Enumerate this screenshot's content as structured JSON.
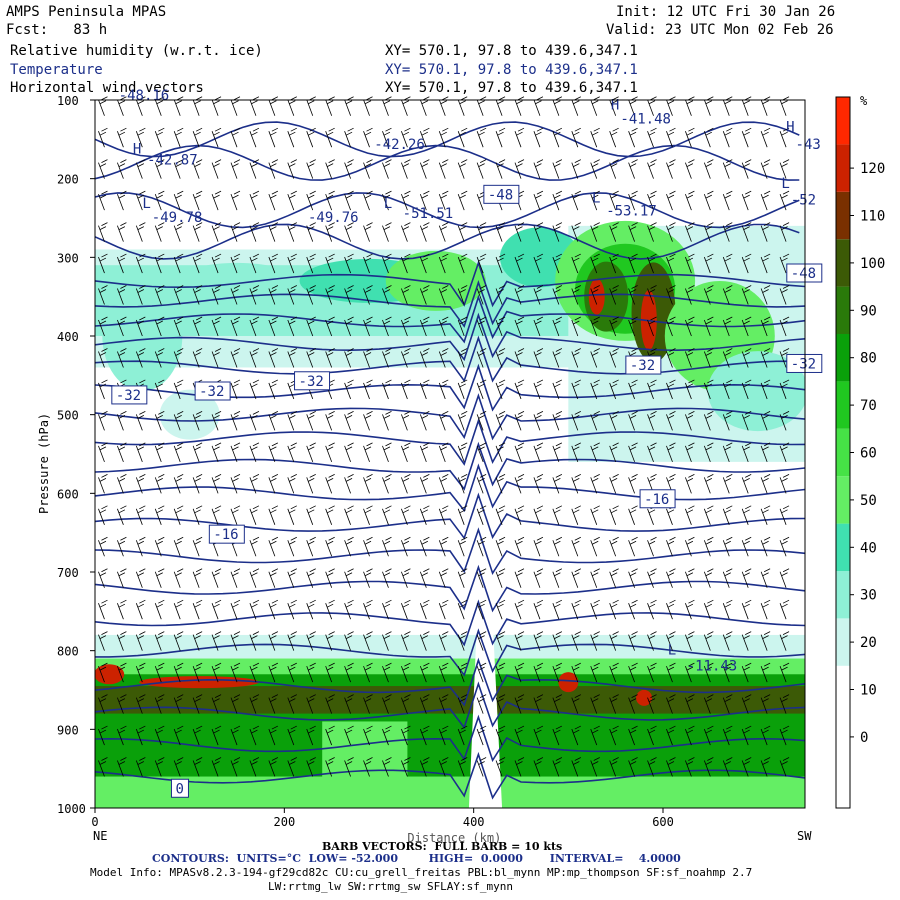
{
  "header": {
    "title": "AMPS Peninsula MPAS",
    "fcst": "Fcst:   83 h",
    "init": "Init: 12 UTC Fri 30 Jan 26",
    "valid": "Valid: 23 UTC Mon 02 Feb 26",
    "field1": "Relative humidity (w.r.t. ice)",
    "field2": "Temperature",
    "field3": "Horizontal wind vectors",
    "xy": "XY= 570.1, 97.8 to 439.6,347.1"
  },
  "chart_data": {
    "type": "heatmap",
    "xlabel": "Distance (km)",
    "ylabel": "Pressure (hPa)",
    "xlim": [
      0,
      750
    ],
    "ylim": [
      1000,
      100
    ],
    "x_ticks": [
      0,
      200,
      400,
      600
    ],
    "y_ticks": [
      100,
      200,
      300,
      400,
      500,
      600,
      700,
      800,
      900,
      1000
    ],
    "x_end_labels": {
      "left": "NE",
      "right": "SW"
    },
    "colorbar": {
      "unit": "%",
      "levels": [
        0,
        10,
        20,
        30,
        40,
        50,
        60,
        70,
        80,
        90,
        100,
        110,
        120
      ],
      "colors": [
        "#ffffff",
        "#ffffff",
        "#ffffff",
        "#ccf5ee",
        "#8ef0d6",
        "#40e0b0",
        "#64ee64",
        "#46e246",
        "#20c820",
        "#0aa00a",
        "#2a7a0a",
        "#3c5a06",
        "#7a3000",
        "#cc2200",
        "#ff2800"
      ]
    },
    "contour_labels": [
      {
        "text": "-48.16",
        "x": 25,
        "p": 100
      },
      {
        "text": "H",
        "x": 40,
        "p": 168
      },
      {
        "text": "-42.87",
        "x": 55,
        "p": 182
      },
      {
        "text": "-42.26",
        "x": 295,
        "p": 162
      },
      {
        "text": "H",
        "x": 545,
        "p": 112
      },
      {
        "text": "-41.48",
        "x": 555,
        "p": 130
      },
      {
        "text": "H",
        "x": 730,
        "p": 140
      },
      {
        "text": "-43",
        "x": 740,
        "p": 162
      },
      {
        "text": "L",
        "x": 50,
        "p": 237
      },
      {
        "text": "-49.78",
        "x": 60,
        "p": 255
      },
      {
        "text": "-49.76",
        "x": 225,
        "p": 255
      },
      {
        "text": "L",
        "x": 305,
        "p": 237
      },
      {
        "text": "-51.51",
        "x": 325,
        "p": 250
      },
      {
        "text": "L",
        "x": 525,
        "p": 230
      },
      {
        "text": "-53.17",
        "x": 540,
        "p": 247
      },
      {
        "text": "L",
        "x": 725,
        "p": 212
      },
      {
        "text": "-52",
        "x": 735,
        "p": 233
      },
      {
        "text": "L",
        "x": 605,
        "p": 805
      },
      {
        "text": "-11.43",
        "x": 625,
        "p": 825
      }
    ],
    "boxed_labels": [
      {
        "text": "-48",
        "x": 415,
        "p": 225
      },
      {
        "text": "-48",
        "x": 735,
        "p": 325
      },
      {
        "text": "-32",
        "x": 22,
        "p": 480
      },
      {
        "text": "-32",
        "x": 110,
        "p": 475
      },
      {
        "text": "-32",
        "x": 215,
        "p": 462
      },
      {
        "text": "-32",
        "x": 565,
        "p": 442
      },
      {
        "text": "-32",
        "x": 735,
        "p": 440
      },
      {
        "text": "-16",
        "x": 580,
        "p": 612
      },
      {
        "text": "-16",
        "x": 125,
        "p": 657
      },
      {
        "text": "0",
        "x": 85,
        "p": 980
      }
    ]
  },
  "footer": {
    "barb": "BARB VECTORS:  FULL BARB = 10 kts",
    "contours": "CONTOURS:  UNITS=°C  LOW= -52.000        HIGH=  0.0000       INTERVAL=    4.0000",
    "model1": "Model Info: MPASv8.2.3-194-gf29cd82c CU:cu_grell_freitas PBL:bl_mynn MP:mp_thompson SF:sf_noahmp 2.7",
    "model2": "LW:rrtmg_lw SW:rrtmg_sw SFLAY:sf_mynn"
  }
}
